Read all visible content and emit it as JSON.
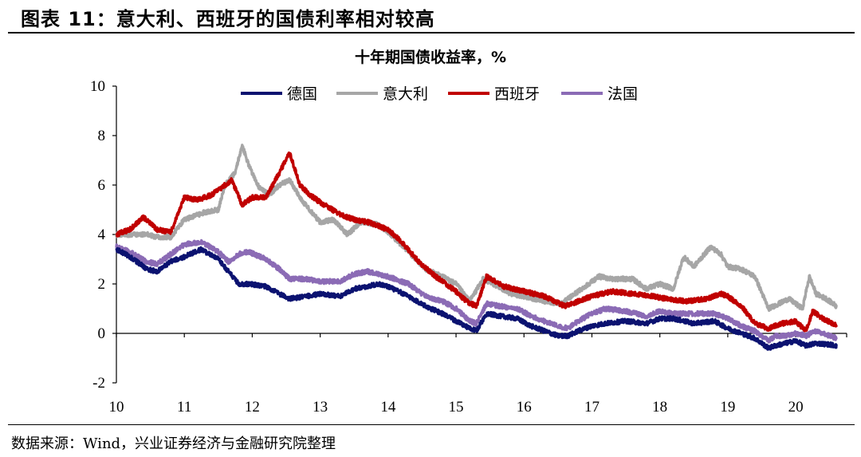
{
  "figure": {
    "title": "图表 11：意大利、西班牙的国债利率相对较高",
    "source": "数据来源：Wind，兴业证券经济与金融研究院整理"
  },
  "chart_data": {
    "type": "line",
    "title": "十年期国债收益率，%",
    "xlabel": "",
    "ylabel": "",
    "ylim": [
      -2,
      10
    ],
    "xlim": [
      2010,
      2020.75
    ],
    "y_ticks": [
      10,
      8,
      6,
      4,
      2,
      0,
      -2
    ],
    "x_ticks": [
      "10",
      "11",
      "12",
      "13",
      "14",
      "15",
      "16",
      "17",
      "18",
      "19",
      "20"
    ],
    "legend_position": "top-center",
    "grid": false,
    "series": [
      {
        "name": "德国",
        "color": "#0b1270",
        "x": [
          2010.0,
          2010.2,
          2010.45,
          2010.6,
          2010.8,
          2011.0,
          2011.25,
          2011.5,
          2011.65,
          2011.8,
          2011.95,
          2012.2,
          2012.4,
          2012.55,
          2012.8,
          2013.0,
          2013.3,
          2013.5,
          2013.7,
          2013.85,
          2014.0,
          2014.3,
          2014.55,
          2014.8,
          2015.0,
          2015.2,
          2015.3,
          2015.45,
          2015.65,
          2015.9,
          2016.1,
          2016.3,
          2016.5,
          2016.65,
          2016.8,
          2017.0,
          2017.2,
          2017.5,
          2017.8,
          2018.0,
          2018.2,
          2018.5,
          2018.8,
          2019.0,
          2019.2,
          2019.4,
          2019.6,
          2019.7,
          2019.85,
          2020.0,
          2020.15,
          2020.3,
          2020.5,
          2020.6
        ],
        "values": [
          3.4,
          3.1,
          2.6,
          2.5,
          2.9,
          3.1,
          3.4,
          3.0,
          2.5,
          2.0,
          2.0,
          1.9,
          1.6,
          1.4,
          1.5,
          1.6,
          1.5,
          1.8,
          1.9,
          2.0,
          1.9,
          1.5,
          1.1,
          0.8,
          0.5,
          0.2,
          0.1,
          0.8,
          0.7,
          0.6,
          0.3,
          0.1,
          -0.1,
          -0.1,
          0.1,
          0.3,
          0.4,
          0.5,
          0.4,
          0.6,
          0.6,
          0.4,
          0.5,
          0.2,
          0.0,
          -0.2,
          -0.6,
          -0.5,
          -0.4,
          -0.3,
          -0.5,
          -0.4,
          -0.45,
          -0.5
        ],
        "_": ""
      },
      {
        "name": "意大利",
        "color": "#a6a6a6",
        "x": [
          2010.0,
          2010.2,
          2010.45,
          2010.6,
          2010.8,
          2011.0,
          2011.3,
          2011.5,
          2011.6,
          2011.75,
          2011.85,
          2011.95,
          2012.1,
          2012.25,
          2012.4,
          2012.55,
          2012.75,
          2013.0,
          2013.2,
          2013.4,
          2013.6,
          2013.85,
          2014.0,
          2014.3,
          2014.55,
          2014.8,
          2015.0,
          2015.2,
          2015.4,
          2015.55,
          2015.8,
          2016.0,
          2016.3,
          2016.55,
          2016.7,
          2016.9,
          2017.1,
          2017.3,
          2017.6,
          2017.8,
          2018.0,
          2018.2,
          2018.35,
          2018.5,
          2018.75,
          2018.9,
          2019.0,
          2019.2,
          2019.4,
          2019.6,
          2019.75,
          2019.9,
          2020.1,
          2020.2,
          2020.3,
          2020.45,
          2020.6
        ],
        "values": [
          4.0,
          4.0,
          4.0,
          3.9,
          3.9,
          4.6,
          4.9,
          5.0,
          6.0,
          6.5,
          7.6,
          6.8,
          5.9,
          5.6,
          6.0,
          6.2,
          5.3,
          4.5,
          4.6,
          4.0,
          4.5,
          4.4,
          4.1,
          3.3,
          2.6,
          2.3,
          2.0,
          1.3,
          2.2,
          2.0,
          1.6,
          1.5,
          1.3,
          1.2,
          1.5,
          1.9,
          2.3,
          2.2,
          2.2,
          1.8,
          2.0,
          1.8,
          3.1,
          2.7,
          3.5,
          3.2,
          2.7,
          2.6,
          2.3,
          1.0,
          1.2,
          1.4,
          1.0,
          2.3,
          1.6,
          1.4,
          1.1
        ],
        "_": ""
      },
      {
        "name": "西班牙",
        "color": "#c00000",
        "x": [
          2010.0,
          2010.2,
          2010.4,
          2010.6,
          2010.8,
          2011.0,
          2011.2,
          2011.4,
          2011.55,
          2011.7,
          2011.85,
          2012.0,
          2012.2,
          2012.4,
          2012.55,
          2012.7,
          2012.85,
          2013.0,
          2013.3,
          2013.5,
          2013.7,
          2014.0,
          2014.2,
          2014.45,
          2014.7,
          2014.9,
          2015.0,
          2015.15,
          2015.3,
          2015.45,
          2015.7,
          2016.0,
          2016.3,
          2016.6,
          2016.8,
          2017.0,
          2017.3,
          2017.6,
          2017.9,
          2018.1,
          2018.4,
          2018.7,
          2018.9,
          2019.0,
          2019.2,
          2019.4,
          2019.6,
          2019.8,
          2020.0,
          2020.15,
          2020.25,
          2020.4,
          2020.6
        ],
        "values": [
          4.0,
          4.2,
          4.7,
          4.2,
          4.1,
          5.5,
          5.4,
          5.6,
          5.9,
          6.2,
          5.2,
          5.5,
          5.5,
          6.5,
          7.3,
          6.0,
          5.6,
          5.3,
          4.8,
          4.6,
          4.5,
          4.2,
          3.7,
          2.9,
          2.3,
          1.9,
          1.7,
          1.3,
          1.1,
          2.3,
          1.9,
          1.7,
          1.5,
          1.1,
          1.3,
          1.5,
          1.7,
          1.6,
          1.5,
          1.4,
          1.3,
          1.4,
          1.6,
          1.5,
          1.1,
          0.4,
          0.2,
          0.4,
          0.5,
          0.1,
          0.9,
          0.6,
          0.3
        ],
        "_": ""
      },
      {
        "name": "法国",
        "color": "#8b6bb5",
        "x": [
          2010.0,
          2010.2,
          2010.45,
          2010.6,
          2010.8,
          2011.0,
          2011.25,
          2011.5,
          2011.65,
          2011.8,
          2011.95,
          2012.2,
          2012.4,
          2012.55,
          2012.8,
          2013.0,
          2013.3,
          2013.5,
          2013.7,
          2013.85,
          2014.0,
          2014.3,
          2014.55,
          2014.8,
          2015.0,
          2015.2,
          2015.3,
          2015.45,
          2015.65,
          2015.9,
          2016.1,
          2016.3,
          2016.5,
          2016.65,
          2016.8,
          2017.0,
          2017.2,
          2017.5,
          2017.8,
          2018.0,
          2018.2,
          2018.5,
          2018.8,
          2019.0,
          2019.2,
          2019.4,
          2019.6,
          2019.7,
          2019.85,
          2020.0,
          2020.15,
          2020.3,
          2020.5,
          2020.6
        ],
        "values": [
          3.5,
          3.3,
          2.9,
          2.8,
          3.2,
          3.6,
          3.7,
          3.3,
          2.9,
          3.2,
          3.3,
          3.0,
          2.6,
          2.2,
          2.2,
          2.1,
          2.1,
          2.4,
          2.5,
          2.4,
          2.3,
          2.0,
          1.5,
          1.3,
          1.0,
          0.5,
          0.4,
          1.2,
          1.1,
          1.0,
          0.7,
          0.5,
          0.3,
          0.2,
          0.5,
          0.8,
          1.0,
          0.9,
          0.7,
          0.9,
          0.8,
          0.8,
          0.8,
          0.6,
          0.3,
          0.1,
          -0.3,
          -0.1,
          -0.1,
          0.0,
          -0.1,
          0.1,
          -0.1,
          -0.2
        ],
        "_": ""
      }
    ]
  }
}
